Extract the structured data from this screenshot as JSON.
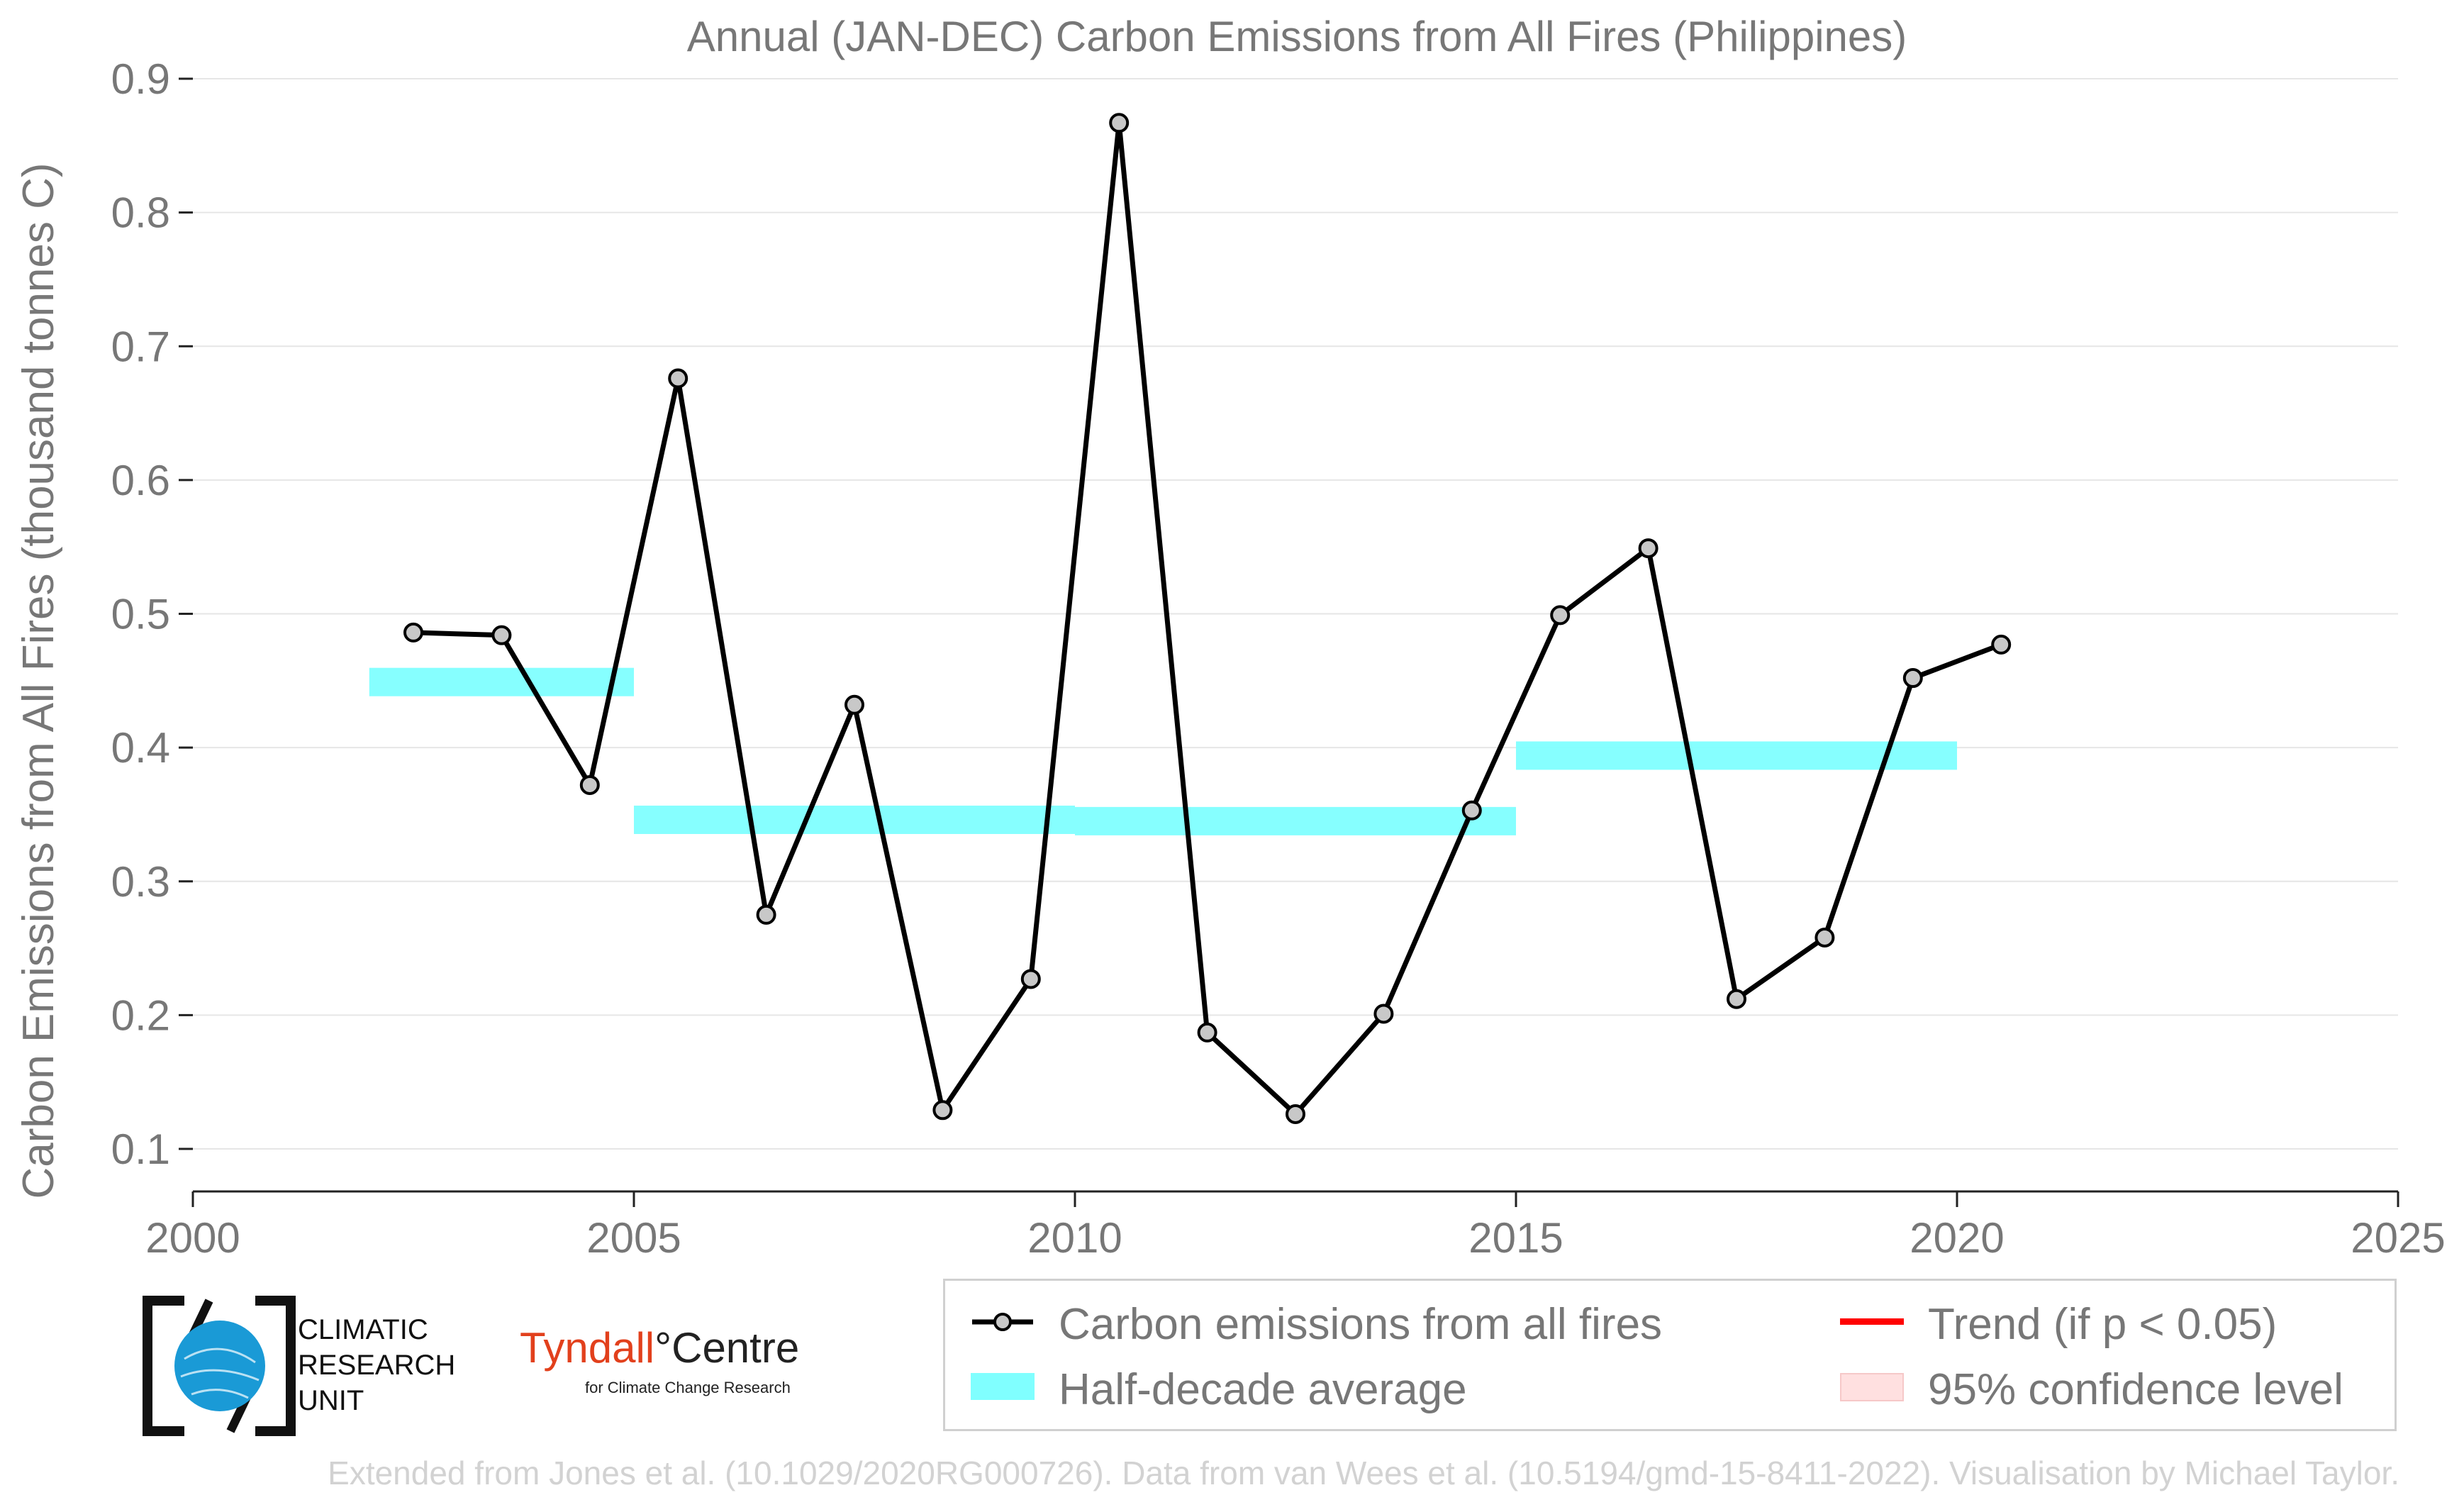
{
  "chart_data": {
    "type": "line",
    "title": "Annual (JAN-DEC) Carbon Emissions from All Fires (Philippines)",
    "xlabel": "",
    "ylabel": "Carbon Emissions from All Fires (thousand tonnes C)",
    "xlim": [
      2000,
      2025
    ],
    "ylim": [
      0.1,
      0.9
    ],
    "xticks": [
      "2000",
      "2005",
      "2010",
      "2015",
      "2020",
      "2025"
    ],
    "yticks": [
      "0.1",
      "0.2",
      "0.3",
      "0.4",
      "0.5",
      "0.6",
      "0.7",
      "0.8",
      "0.9"
    ],
    "grid": "horizontal",
    "series": [
      {
        "name": "Carbon emissions from all fires",
        "color": "#000000",
        "x": [
          2002.5,
          2003.5,
          2004.5,
          2005.5,
          2006.5,
          2007.5,
          2008.5,
          2009.5,
          2010.5,
          2011.5,
          2012.5,
          2013.5,
          2014.5,
          2015.5,
          2016.5,
          2017.5,
          2018.5,
          2019.5,
          2020.5
        ],
        "values": [
          0.486,
          0.484,
          0.372,
          0.676,
          0.275,
          0.432,
          0.129,
          0.227,
          0.867,
          0.187,
          0.126,
          0.201,
          0.353,
          0.499,
          0.549,
          0.212,
          0.258,
          0.452,
          0.477
        ]
      }
    ],
    "half_decade_average": {
      "name": "Half-decade average",
      "color": "#80ffff",
      "segments": [
        {
          "x_start": 2002,
          "x_end": 2005,
          "value": 0.449
        },
        {
          "x_start": 2005,
          "x_end": 2010,
          "value": 0.346
        },
        {
          "x_start": 2010,
          "x_end": 2015,
          "value": 0.345
        },
        {
          "x_start": 2015,
          "x_end": 2020,
          "value": 0.394
        }
      ]
    },
    "legend": {
      "placement": "bottom-right",
      "entries": [
        {
          "label": "Carbon emissions from all fires",
          "color": "#000000"
        },
        {
          "label": "Half-decade average",
          "color": "#80ffff"
        },
        {
          "label": "Trend (if p < 0.05)",
          "color": "#ff0000"
        },
        {
          "label": "95% confidence level",
          "color": "#ffe0e0"
        }
      ]
    }
  },
  "logos": {
    "cru": {
      "line1": "CLIMATIC",
      "line2": "RESEARCH",
      "line3": "UNIT",
      "color": "#1a9ad6"
    },
    "tyndall": {
      "name": "Tyndall",
      "degree": "°",
      "centre": "Centre",
      "subtitle": "for Climate Change Research"
    }
  },
  "footer": "Extended from Jones et al. (10.1029/2020RG000726). Data from van Wees et al. (10.5194/gmd-15-8411-2022). Visualisation by Michael Taylor."
}
